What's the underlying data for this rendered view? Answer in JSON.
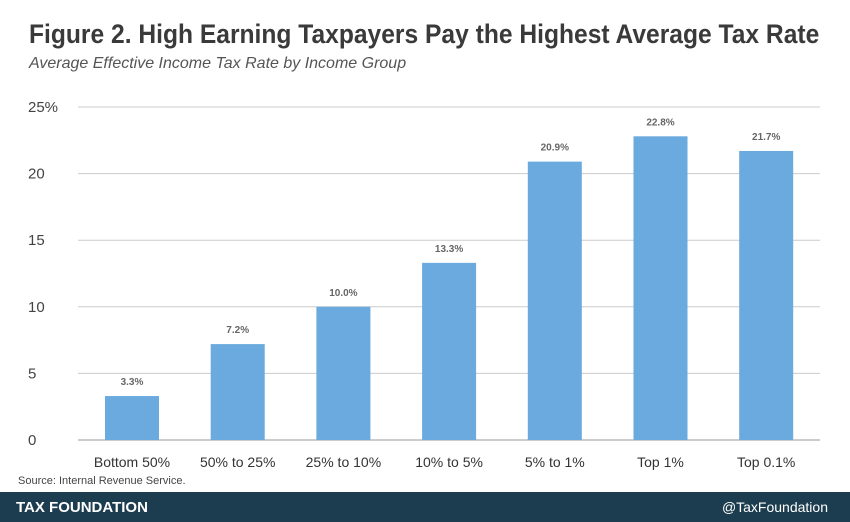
{
  "chart_data": {
    "type": "bar",
    "title": "Figure 2. High Earning Taxpayers Pay the Highest Average Tax Rate",
    "subtitle": "Average Effective Income Tax Rate by Income Group",
    "categories": [
      "Bottom 50%",
      "50% to 25%",
      "25% to 10%",
      "10% to 5%",
      "5% to 1%",
      "Top 1%",
      "Top 0.1%"
    ],
    "values": [
      3.3,
      7.2,
      10.0,
      13.3,
      20.9,
      22.8,
      21.7
    ],
    "data_labels": [
      "3.3%",
      "7.2%",
      "10.0%",
      "13.3%",
      "20.9%",
      "22.8%",
      "21.7%"
    ],
    "ylim": [
      0,
      25
    ],
    "yticks": [
      0,
      5,
      10,
      15,
      20,
      25
    ],
    "ytick_labels": [
      "0",
      "5",
      "10",
      "15",
      "20",
      "25%"
    ],
    "grid": true,
    "bar_color": "#6aaade",
    "xlabel": "",
    "ylabel": ""
  },
  "source": "Source: Internal Revenue Service.",
  "footer": {
    "brand": "TAX FOUNDATION",
    "handle": "@TaxFoundation",
    "color": "#1c3d4f"
  }
}
